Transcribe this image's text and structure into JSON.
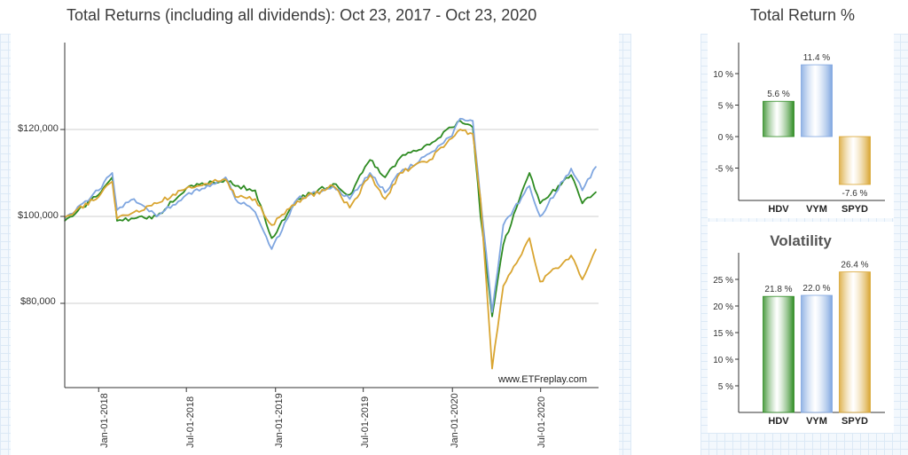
{
  "main_chart": {
    "title": "Total Returns (including all dividends): Oct 23, 2017 - Oct 23, 2020",
    "y_ticks": [
      "$120,000",
      "$100,000",
      "$80,000"
    ],
    "x_ticks": [
      "Jan-01-2018",
      "Jul-01-2018",
      "Jan-01-2019",
      "Jul-01-2019",
      "Jan-01-2020",
      "Jul-01-2020"
    ],
    "watermark": "www.ETFreplay.com"
  },
  "chart_data": [
    {
      "type": "line",
      "title": "Total Returns (including all dividends): Oct 23, 2017 - Oct 23, 2020",
      "xlabel": "",
      "ylabel": "",
      "x": [
        "Oct-23-2017",
        "Jan-01-2018",
        "Jan-29-2018",
        "Feb-08-2018",
        "Mar-15-2018",
        "May-01-2018",
        "Jul-01-2018",
        "Sep-20-2018",
        "Oct-10-2018",
        "Nov-20-2018",
        "Dec-24-2018",
        "Feb-15-2019",
        "Apr-30-2019",
        "Jun-03-2019",
        "Jul-15-2019",
        "Aug-15-2019",
        "Sep-15-2019",
        "Nov-15-2019",
        "Dec-31-2019",
        "Jan-17-2020",
        "Feb-12-2020",
        "Feb-28-2020",
        "Mar-23-2020",
        "Apr-15-2020",
        "Jun-08-2020",
        "Jun-30-2020",
        "Sep-02-2020",
        "Sep-25-2020",
        "Oct-23-2020"
      ],
      "ylim": [
        60000,
        140000
      ],
      "series": [
        {
          "name": "HDV",
          "color": "#2e8b22",
          "values": [
            99000,
            105000,
            109000,
            99000,
            99500,
            100000,
            106500,
            108500,
            107000,
            106000,
            95000,
            104000,
            107500,
            105000,
            113000,
            109000,
            113500,
            116500,
            120500,
            122000,
            120500,
            100000,
            77000,
            93500,
            110000,
            103000,
            109500,
            103000,
            105600
          ]
        },
        {
          "name": "VYM",
          "color": "#7fa6e0",
          "values": [
            99500,
            106000,
            110000,
            101500,
            104000,
            100000,
            105000,
            109000,
            104000,
            101000,
            92500,
            104000,
            107000,
            104000,
            110000,
            105500,
            110000,
            114500,
            118500,
            122500,
            122000,
            104000,
            78000,
            98000,
            107000,
            100000,
            111000,
            106000,
            111400
          ]
        },
        {
          "name": "SPYD",
          "color": "#d9a531",
          "values": [
            99800,
            104500,
            108000,
            99500,
            101000,
            103000,
            106500,
            108500,
            104500,
            104000,
            98000,
            103500,
            107000,
            102000,
            109500,
            104000,
            110000,
            113000,
            118000,
            120000,
            119000,
            104000,
            65000,
            84000,
            95000,
            85000,
            91000,
            85500,
            92400
          ]
        }
      ]
    },
    {
      "type": "bar",
      "title": "Total Return %",
      "categories": [
        "HDV",
        "VYM",
        "SPYD"
      ],
      "values": [
        5.6,
        11.4,
        -7.6
      ],
      "value_labels": [
        "5.6 %",
        "11.4 %",
        "-7.6 %"
      ],
      "y_ticks": [
        "10 %",
        "5 %",
        "0 %",
        "-5 %"
      ],
      "ylim": [
        -10,
        15
      ],
      "colors": [
        "#2e8b22",
        "#7fa6e0",
        "#d9a531"
      ]
    },
    {
      "type": "bar",
      "title": "Volatility",
      "categories": [
        "HDV",
        "VYM",
        "SPYD"
      ],
      "values": [
        21.8,
        22.0,
        26.4
      ],
      "value_labels": [
        "21.8 %",
        "22.0 %",
        "26.4 %"
      ],
      "y_ticks": [
        "25 %",
        "20 %",
        "15 %",
        "10 %",
        "5 %"
      ],
      "ylim": [
        0,
        30
      ],
      "colors": [
        "#2e8b22",
        "#7fa6e0",
        "#d9a531"
      ]
    }
  ]
}
